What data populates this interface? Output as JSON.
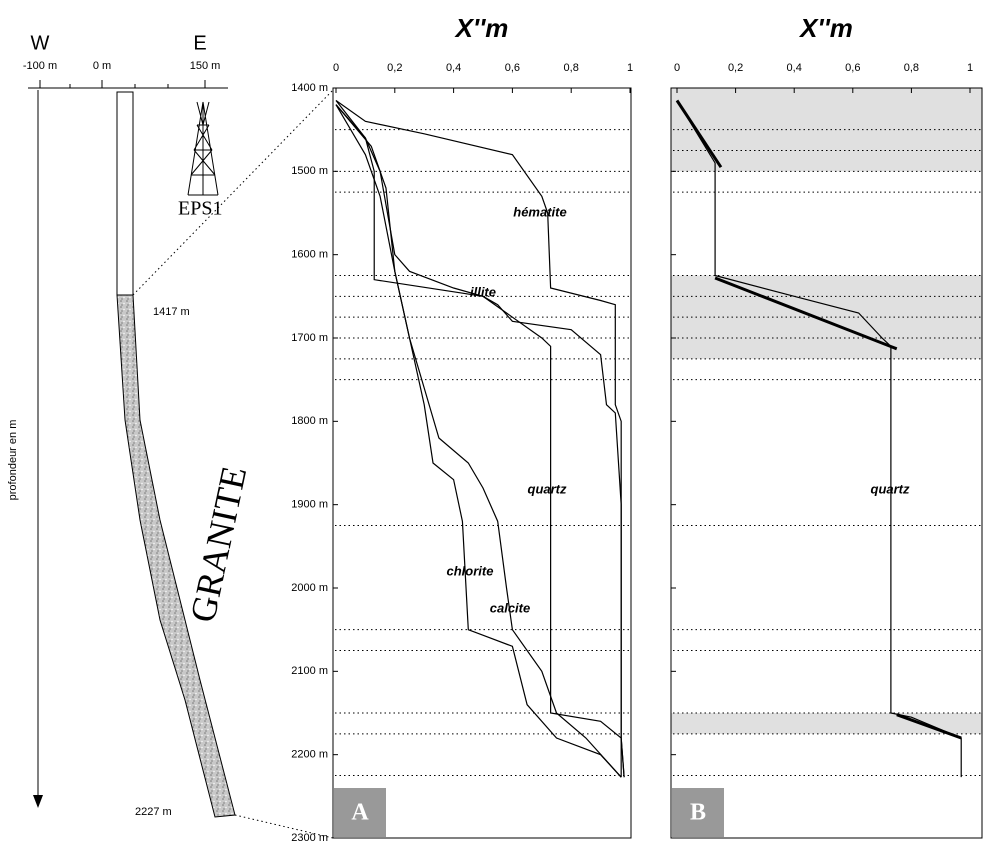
{
  "well": {
    "west": "W",
    "east": "E",
    "ticks": [
      "-100 m",
      "0 m",
      "150 m"
    ],
    "axis_label": "profondeur en m",
    "top_granite": "1417 m",
    "bottom": "2227 m",
    "well_name": "EPS1",
    "rock": "GRANITE"
  },
  "chart_data": [
    {
      "type": "line",
      "panel": "A",
      "title": "X''m",
      "xlim": [
        0,
        1
      ],
      "ylim": [
        1400,
        2300
      ],
      "xticks": [
        0,
        {
          "value": 0.2,
          "label": "0,2"
        },
        {
          "value": 0.4,
          "label": "0,4"
        },
        {
          "value": 0.6,
          "label": "0,6"
        },
        {
          "value": 0.8,
          "label": "0,8"
        },
        1
      ],
      "yticks": [
        {
          "value": 1400,
          "label": "1400 m"
        },
        {
          "value": 1500,
          "label": "1500 m"
        },
        {
          "value": 1600,
          "label": "1600 m"
        },
        {
          "value": 1700,
          "label": "1700 m"
        },
        {
          "value": 1800,
          "label": "1800 m"
        },
        {
          "value": 1900,
          "label": "1900 m"
        },
        {
          "value": 2000,
          "label": "2000 m"
        },
        {
          "value": 2100,
          "label": "2100 m"
        },
        {
          "value": 2200,
          "label": "2200 m"
        },
        {
          "value": 2300,
          "label": "2300 m"
        }
      ],
      "show_ytick_labels": true,
      "color": "#000000",
      "dotted_depths": [
        1450,
        1500,
        1525,
        1625,
        1650,
        1675,
        1700,
        1725,
        1750,
        1925,
        2050,
        2075,
        2150,
        2175,
        2225
      ],
      "bands": [],
      "series": [
        {
          "name": "hématite",
          "x": [
            0,
            0.1,
            0.3,
            0.6,
            0.7,
            0.72,
            0.73,
            0.9,
            0.95,
            0.95,
            0.97,
            0.97,
            0.98
          ],
          "y": [
            1415,
            1440,
            1455,
            1480,
            1530,
            1550,
            1640,
            1655,
            1660,
            1780,
            1800,
            2180,
            2227
          ]
        },
        {
          "name": "illite",
          "x": [
            0,
            0.1,
            0.15,
            0.18,
            0.2,
            0.25,
            0.4,
            0.5,
            0.55,
            0.6,
            0.8,
            0.9,
            0.92,
            0.95,
            0.97,
            0.97
          ],
          "y": [
            1420,
            1460,
            1500,
            1560,
            1600,
            1620,
            1640,
            1650,
            1660,
            1680,
            1690,
            1720,
            1780,
            1790,
            1900,
            2227
          ]
        },
        {
          "name": "quartz",
          "x": [
            0,
            0.1,
            0.13,
            0.13,
            0.5,
            0.7,
            0.73,
            0.73,
            0.9,
            0.97,
            0.98
          ],
          "y": [
            1415,
            1460,
            1500,
            1630,
            1650,
            1700,
            1710,
            2150,
            2160,
            2180,
            2227
          ]
        },
        {
          "name": "chlorite",
          "x": [
            0,
            0.12,
            0.17,
            0.2,
            0.25,
            0.3,
            0.33,
            0.4,
            0.43,
            0.45,
            0.6,
            0.65,
            0.75,
            0.9,
            0.97
          ],
          "y": [
            1420,
            1470,
            1520,
            1620,
            1700,
            1780,
            1850,
            1870,
            1920,
            2050,
            2070,
            2140,
            2180,
            2200,
            2227
          ]
        },
        {
          "name": "calcite",
          "x": [
            0,
            0.1,
            0.15,
            0.2,
            0.25,
            0.3,
            0.35,
            0.45,
            0.5,
            0.55,
            0.58,
            0.6,
            0.7,
            0.75,
            0.85,
            0.97
          ],
          "y": [
            1420,
            1480,
            1530,
            1620,
            1700,
            1760,
            1820,
            1850,
            1880,
            1920,
            2000,
            2050,
            2100,
            2150,
            2180,
            2227
          ]
        }
      ]
    },
    {
      "type": "line",
      "panel": "B",
      "title": "X''m",
      "xlim": [
        0,
        1
      ],
      "ylim": [
        1400,
        2300
      ],
      "xticks": [
        0,
        {
          "value": 0.2,
          "label": "0,2"
        },
        {
          "value": 0.4,
          "label": "0,4"
        },
        {
          "value": 0.6,
          "label": "0,6"
        },
        {
          "value": 0.8,
          "label": "0,8"
        },
        1
      ],
      "yticks": [
        1400,
        1500,
        1600,
        1700,
        1800,
        1900,
        2000,
        2100,
        2200,
        2300
      ],
      "show_ytick_labels": false,
      "color": "#000000",
      "dotted_depths": [
        1450,
        1475,
        1500,
        1525,
        1625,
        1650,
        1675,
        1700,
        1725,
        1750,
        1925,
        2050,
        2075,
        2150,
        2175,
        2225
      ],
      "bands": [
        [
          1400,
          1500
        ],
        [
          1625,
          1725
        ],
        [
          2150,
          2175
        ]
      ],
      "series": [
        {
          "name": "quartz",
          "x": [
            0,
            0.13,
            0.13,
            0.4,
            0.62,
            0.7,
            0.73,
            0.73,
            0.8,
            0.97,
            0.97
          ],
          "y": [
            1415,
            1490,
            1625,
            1650,
            1670,
            1700,
            1710,
            2150,
            2155,
            2180,
            2227
          ]
        },
        {
          "x": [
            0,
            0.15
          ],
          "y": [
            1415,
            1495
          ],
          "width": 3
        },
        {
          "x": [
            0.13,
            0.75
          ],
          "y": [
            1628,
            1713
          ],
          "width": 3
        },
        {
          "x": [
            0.75,
            0.97
          ],
          "y": [
            2152,
            2180
          ],
          "width": 3
        }
      ]
    }
  ]
}
